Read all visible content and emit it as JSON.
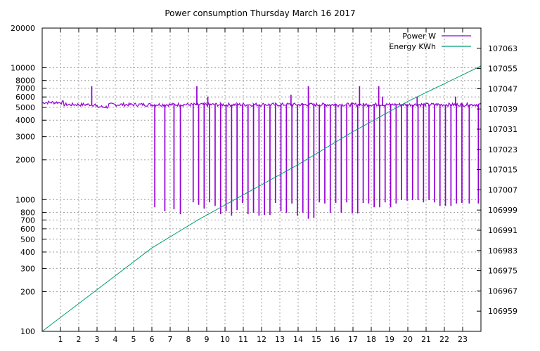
{
  "chart_data": {
    "type": "line",
    "title": "Power consumption Thursday March 16 2017",
    "x": {
      "ticks": [
        1,
        2,
        3,
        4,
        5,
        6,
        7,
        8,
        9,
        10,
        11,
        12,
        13,
        14,
        15,
        16,
        17,
        18,
        19,
        20,
        21,
        22,
        23
      ],
      "range": [
        0,
        24
      ]
    },
    "y_left": {
      "scale": "log",
      "range": [
        100,
        20000
      ],
      "ticks": [
        100,
        200,
        300,
        400,
        500,
        600,
        700,
        800,
        1000,
        2000,
        3000,
        4000,
        5000,
        6000,
        7000,
        8000,
        10000,
        20000
      ]
    },
    "y_right": {
      "range": [
        106951,
        107071
      ],
      "ticks": [
        106959,
        106967,
        106975,
        106983,
        106991,
        106999,
        107007,
        107015,
        107023,
        107031,
        107039,
        107047,
        107055,
        107063
      ]
    },
    "legend": {
      "placement": "top-right"
    },
    "grid": true,
    "series": [
      {
        "name": "Power W",
        "axis": "left",
        "color": "#9400d3",
        "baseline": 5200,
        "drops": [
          {
            "x": 6.15,
            "y": 880
          },
          {
            "x": 6.7,
            "y": 820
          },
          {
            "x": 7.2,
            "y": 850
          },
          {
            "x": 7.55,
            "y": 780
          },
          {
            "x": 8.25,
            "y": 960
          },
          {
            "x": 8.55,
            "y": 920
          },
          {
            "x": 8.85,
            "y": 860
          },
          {
            "x": 9.15,
            "y": 960
          },
          {
            "x": 9.45,
            "y": 900
          },
          {
            "x": 9.75,
            "y": 780
          },
          {
            "x": 10.05,
            "y": 820
          },
          {
            "x": 10.35,
            "y": 760
          },
          {
            "x": 10.65,
            "y": 840
          },
          {
            "x": 10.95,
            "y": 950
          },
          {
            "x": 11.25,
            "y": 780
          },
          {
            "x": 11.55,
            "y": 800
          },
          {
            "x": 11.85,
            "y": 760
          },
          {
            "x": 12.15,
            "y": 770
          },
          {
            "x": 12.45,
            "y": 770
          },
          {
            "x": 12.75,
            "y": 950
          },
          {
            "x": 13.05,
            "y": 820
          },
          {
            "x": 13.35,
            "y": 800
          },
          {
            "x": 13.65,
            "y": 940
          },
          {
            "x": 13.95,
            "y": 760
          },
          {
            "x": 14.25,
            "y": 800
          },
          {
            "x": 14.55,
            "y": 720
          },
          {
            "x": 14.85,
            "y": 730
          },
          {
            "x": 15.15,
            "y": 960
          },
          {
            "x": 15.45,
            "y": 940
          },
          {
            "x": 15.75,
            "y": 800
          },
          {
            "x": 16.05,
            "y": 950
          },
          {
            "x": 16.35,
            "y": 800
          },
          {
            "x": 16.65,
            "y": 960
          },
          {
            "x": 16.95,
            "y": 790
          },
          {
            "x": 17.25,
            "y": 790
          },
          {
            "x": 17.55,
            "y": 950
          },
          {
            "x": 17.85,
            "y": 940
          },
          {
            "x": 18.15,
            "y": 880
          },
          {
            "x": 18.45,
            "y": 880
          },
          {
            "x": 18.75,
            "y": 960
          },
          {
            "x": 19.05,
            "y": 880
          },
          {
            "x": 19.35,
            "y": 940
          },
          {
            "x": 19.65,
            "y": 1000
          },
          {
            "x": 19.95,
            "y": 990
          },
          {
            "x": 20.25,
            "y": 1000
          },
          {
            "x": 20.55,
            "y": 1000
          },
          {
            "x": 20.85,
            "y": 960
          },
          {
            "x": 21.15,
            "y": 1000
          },
          {
            "x": 21.45,
            "y": 960
          },
          {
            "x": 21.75,
            "y": 900
          },
          {
            "x": 22.05,
            "y": 900
          },
          {
            "x": 22.35,
            "y": 900
          },
          {
            "x": 22.65,
            "y": 940
          },
          {
            "x": 22.95,
            "y": 950
          },
          {
            "x": 23.35,
            "y": 940
          },
          {
            "x": 23.85,
            "y": 940
          }
        ],
        "spikes": [
          {
            "x": 2.7,
            "y": 7200
          },
          {
            "x": 8.45,
            "y": 7200
          },
          {
            "x": 9.05,
            "y": 6000
          },
          {
            "x": 13.6,
            "y": 6200
          },
          {
            "x": 14.55,
            "y": 7200
          },
          {
            "x": 17.35,
            "y": 7200
          },
          {
            "x": 18.4,
            "y": 7200
          },
          {
            "x": 18.6,
            "y": 6000
          },
          {
            "x": 20.5,
            "y": 6000
          },
          {
            "x": 22.6,
            "y": 6000
          }
        ]
      },
      {
        "name": "Energy KWh",
        "axis": "right",
        "color": "#009e73",
        "points": [
          {
            "x": 0,
            "y": 106951
          },
          {
            "x": 6,
            "y": 106984
          },
          {
            "x": 8.5,
            "y": 106995
          },
          {
            "x": 11,
            "y": 107005
          },
          {
            "x": 14,
            "y": 107017
          },
          {
            "x": 17,
            "y": 107030
          },
          {
            "x": 20,
            "y": 107042
          },
          {
            "x": 24,
            "y": 107056
          }
        ]
      }
    ]
  }
}
